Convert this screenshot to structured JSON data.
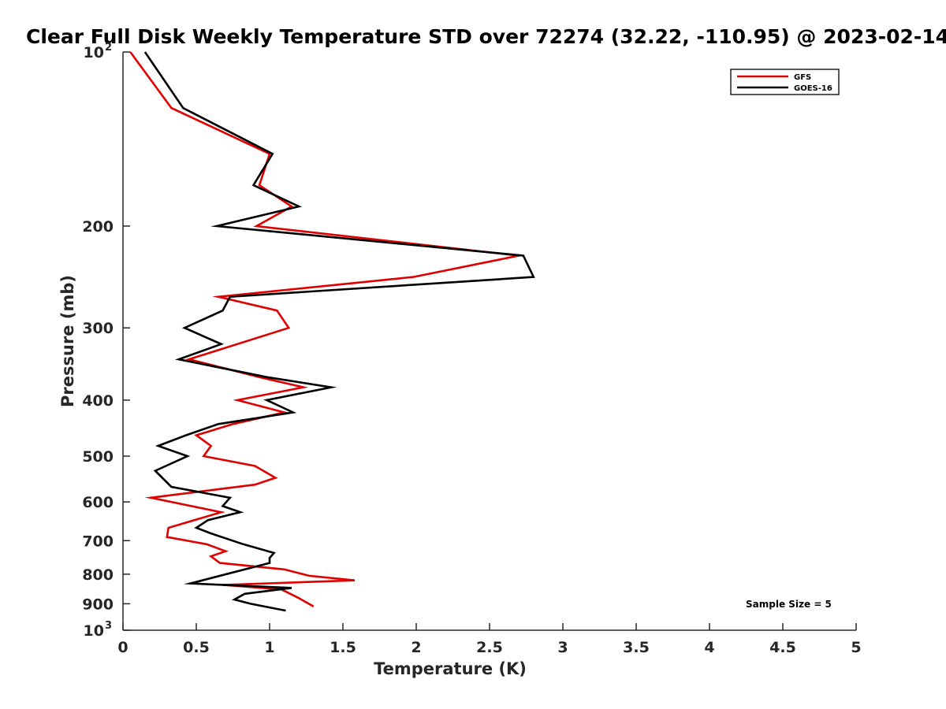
{
  "chart_data": {
    "type": "line",
    "title": "Clear Full Disk Weekly Temperature STD over 72274 (32.22, -110.95) @ 2023-02-14",
    "xlabel": "Temperature (K)",
    "ylabel": "Pressure (mb)",
    "xlim": [
      0,
      5
    ],
    "ylim": [
      100,
      1000
    ],
    "y_scale": "log",
    "y_reversed": true,
    "grid": false,
    "legend_position": "top-right",
    "x_ticks": [
      "0",
      "0.5",
      "1",
      "1.5",
      "2",
      "2.5",
      "3",
      "3.5",
      "4",
      "4.5",
      "5"
    ],
    "y_ticks": [
      {
        "value": 100,
        "base": "10",
        "exp": "2"
      },
      {
        "value": 200,
        "label": "200"
      },
      {
        "value": 300,
        "label": "300"
      },
      {
        "value": 400,
        "label": "400"
      },
      {
        "value": 500,
        "label": "500"
      },
      {
        "value": 600,
        "label": "600"
      },
      {
        "value": 700,
        "label": "700"
      },
      {
        "value": 800,
        "label": "800"
      },
      {
        "value": 900,
        "label": "900"
      },
      {
        "value": 1000,
        "base": "10",
        "exp": "3"
      }
    ],
    "annotation": "Sample Size = 5",
    "series": [
      {
        "name": "GFS",
        "color": "#e00000",
        "points": [
          {
            "x": 0.05,
            "y": 100
          },
          {
            "x": 0.33,
            "y": 125
          },
          {
            "x": 1.0,
            "y": 150
          },
          {
            "x": 0.93,
            "y": 170
          },
          {
            "x": 1.15,
            "y": 185
          },
          {
            "x": 0.91,
            "y": 200
          },
          {
            "x": 2.7,
            "y": 225
          },
          {
            "x": 1.98,
            "y": 245
          },
          {
            "x": 0.65,
            "y": 265
          },
          {
            "x": 1.05,
            "y": 280
          },
          {
            "x": 1.13,
            "y": 300
          },
          {
            "x": 0.45,
            "y": 340
          },
          {
            "x": 0.93,
            "y": 365
          },
          {
            "x": 1.23,
            "y": 380
          },
          {
            "x": 0.78,
            "y": 400
          },
          {
            "x": 1.1,
            "y": 420
          },
          {
            "x": 0.75,
            "y": 440
          },
          {
            "x": 0.5,
            "y": 460
          },
          {
            "x": 0.6,
            "y": 480
          },
          {
            "x": 0.55,
            "y": 500
          },
          {
            "x": 0.9,
            "y": 520
          },
          {
            "x": 1.04,
            "y": 545
          },
          {
            "x": 0.9,
            "y": 560
          },
          {
            "x": 0.19,
            "y": 590
          },
          {
            "x": 0.67,
            "y": 625
          },
          {
            "x": 0.31,
            "y": 665
          },
          {
            "x": 0.3,
            "y": 690
          },
          {
            "x": 0.57,
            "y": 710
          },
          {
            "x": 0.7,
            "y": 730
          },
          {
            "x": 0.6,
            "y": 745
          },
          {
            "x": 0.66,
            "y": 765
          },
          {
            "x": 1.1,
            "y": 785
          },
          {
            "x": 1.27,
            "y": 805
          },
          {
            "x": 1.58,
            "y": 820
          },
          {
            "x": 0.68,
            "y": 835
          },
          {
            "x": 1.08,
            "y": 850
          },
          {
            "x": 1.2,
            "y": 880
          },
          {
            "x": 1.3,
            "y": 910
          }
        ]
      },
      {
        "name": "GOES-16",
        "color": "#000000",
        "points": [
          {
            "x": 0.15,
            "y": 100
          },
          {
            "x": 0.41,
            "y": 125
          },
          {
            "x": 1.02,
            "y": 150
          },
          {
            "x": 0.89,
            "y": 170
          },
          {
            "x": 1.2,
            "y": 185
          },
          {
            "x": 0.64,
            "y": 200
          },
          {
            "x": 2.73,
            "y": 225
          },
          {
            "x": 2.8,
            "y": 245
          },
          {
            "x": 0.73,
            "y": 265
          },
          {
            "x": 0.68,
            "y": 280
          },
          {
            "x": 0.42,
            "y": 300
          },
          {
            "x": 0.67,
            "y": 320
          },
          {
            "x": 0.38,
            "y": 340
          },
          {
            "x": 0.98,
            "y": 365
          },
          {
            "x": 1.42,
            "y": 380
          },
          {
            "x": 0.98,
            "y": 400
          },
          {
            "x": 1.16,
            "y": 420
          },
          {
            "x": 0.65,
            "y": 440
          },
          {
            "x": 0.43,
            "y": 460
          },
          {
            "x": 0.24,
            "y": 480
          },
          {
            "x": 0.44,
            "y": 500
          },
          {
            "x": 0.22,
            "y": 530
          },
          {
            "x": 0.33,
            "y": 565
          },
          {
            "x": 0.73,
            "y": 590
          },
          {
            "x": 0.68,
            "y": 610
          },
          {
            "x": 0.8,
            "y": 625
          },
          {
            "x": 0.58,
            "y": 645
          },
          {
            "x": 0.5,
            "y": 665
          },
          {
            "x": 0.6,
            "y": 680
          },
          {
            "x": 0.82,
            "y": 710
          },
          {
            "x": 1.03,
            "y": 735
          },
          {
            "x": 1.0,
            "y": 750
          },
          {
            "x": 1.0,
            "y": 765
          },
          {
            "x": 0.46,
            "y": 830
          },
          {
            "x": 1.15,
            "y": 845
          },
          {
            "x": 0.83,
            "y": 865
          },
          {
            "x": 0.76,
            "y": 885
          },
          {
            "x": 0.87,
            "y": 900
          },
          {
            "x": 1.11,
            "y": 925
          }
        ]
      }
    ]
  }
}
